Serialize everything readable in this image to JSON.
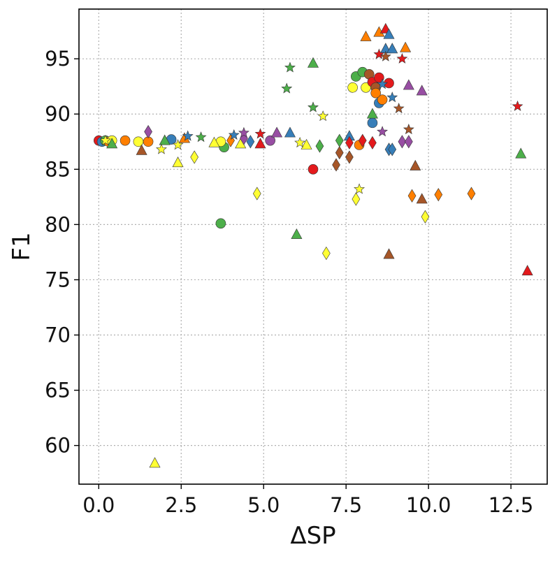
{
  "chart_data": {
    "type": "scatter",
    "xlabel": "ΔSP",
    "ylabel": "F1",
    "xlim": [
      -0.6,
      13.6
    ],
    "ylim": [
      56.5,
      99.5
    ],
    "xticks": [
      "0.0",
      "2.5",
      "5.0",
      "7.5",
      "10.0",
      "12.5"
    ],
    "xtick_values": [
      0,
      2.5,
      5,
      7.5,
      10,
      12.5
    ],
    "yticks": [
      "60",
      "65",
      "70",
      "75",
      "80",
      "85",
      "90",
      "95"
    ],
    "ytick_values": [
      60,
      65,
      70,
      75,
      80,
      85,
      90,
      95
    ],
    "grid": true,
    "legend": "none",
    "colors": {
      "red": "#e41a1c",
      "blue": "#377eb8",
      "green": "#4daf4a",
      "purple": "#984ea3",
      "orange": "#ff7f00",
      "yellow": "#ffff33",
      "brown": "#a65628",
      "edge": "#333333"
    },
    "points": [
      {
        "x": 0.0,
        "y": 87.6,
        "marker": "circle",
        "color": "red"
      },
      {
        "x": 0.1,
        "y": 87.5,
        "marker": "circle",
        "color": "blue"
      },
      {
        "x": 0.2,
        "y": 87.6,
        "marker": "circle",
        "color": "green"
      },
      {
        "x": 0.3,
        "y": 87.5,
        "marker": "circle",
        "color": "orange"
      },
      {
        "x": 0.4,
        "y": 87.6,
        "marker": "circle",
        "color": "yellow"
      },
      {
        "x": 0.8,
        "y": 87.6,
        "marker": "circle",
        "color": "orange"
      },
      {
        "x": 1.2,
        "y": 87.5,
        "marker": "circle",
        "color": "yellow"
      },
      {
        "x": 1.5,
        "y": 87.5,
        "marker": "circle",
        "color": "orange"
      },
      {
        "x": 3.7,
        "y": 80.1,
        "marker": "circle",
        "color": "green"
      },
      {
        "x": 3.8,
        "y": 87.0,
        "marker": "circle",
        "color": "green"
      },
      {
        "x": 3.7,
        "y": 87.5,
        "marker": "circle",
        "color": "yellow"
      },
      {
        "x": 5.2,
        "y": 87.6,
        "marker": "circle",
        "color": "purple"
      },
      {
        "x": 2.2,
        "y": 87.7,
        "marker": "circle",
        "color": "blue"
      },
      {
        "x": 6.5,
        "y": 85.0,
        "marker": "circle",
        "color": "red"
      },
      {
        "x": 7.7,
        "y": 92.4,
        "marker": "circle",
        "color": "yellow"
      },
      {
        "x": 7.8,
        "y": 93.4,
        "marker": "circle",
        "color": "green"
      },
      {
        "x": 8.0,
        "y": 93.8,
        "marker": "circle",
        "color": "green"
      },
      {
        "x": 8.1,
        "y": 92.4,
        "marker": "circle",
        "color": "yellow"
      },
      {
        "x": 8.2,
        "y": 93.6,
        "marker": "circle",
        "color": "brown"
      },
      {
        "x": 8.3,
        "y": 92.9,
        "marker": "circle",
        "color": "red"
      },
      {
        "x": 8.4,
        "y": 92.4,
        "marker": "circle",
        "color": "brown"
      },
      {
        "x": 8.5,
        "y": 93.3,
        "marker": "circle",
        "color": "red"
      },
      {
        "x": 8.5,
        "y": 91.0,
        "marker": "circle",
        "color": "blue"
      },
      {
        "x": 8.6,
        "y": 91.3,
        "marker": "circle",
        "color": "orange"
      },
      {
        "x": 8.8,
        "y": 92.8,
        "marker": "circle",
        "color": "red"
      },
      {
        "x": 8.3,
        "y": 89.2,
        "marker": "circle",
        "color": "blue"
      },
      {
        "x": 7.9,
        "y": 87.2,
        "marker": "circle",
        "color": "orange"
      },
      {
        "x": 8.4,
        "y": 91.9,
        "marker": "circle",
        "color": "orange"
      },
      {
        "x": 0.4,
        "y": 87.3,
        "marker": "triangle",
        "color": "green"
      },
      {
        "x": 1.3,
        "y": 86.7,
        "marker": "triangle",
        "color": "brown"
      },
      {
        "x": 1.7,
        "y": 58.4,
        "marker": "triangle",
        "color": "yellow"
      },
      {
        "x": 2.0,
        "y": 87.6,
        "marker": "triangle",
        "color": "green"
      },
      {
        "x": 2.4,
        "y": 85.6,
        "marker": "triangle",
        "color": "yellow"
      },
      {
        "x": 2.6,
        "y": 87.8,
        "marker": "triangle",
        "color": "orange"
      },
      {
        "x": 3.5,
        "y": 87.4,
        "marker": "triangle",
        "color": "yellow"
      },
      {
        "x": 4.3,
        "y": 87.3,
        "marker": "triangle",
        "color": "yellow"
      },
      {
        "x": 4.9,
        "y": 87.3,
        "marker": "triangle",
        "color": "red"
      },
      {
        "x": 5.4,
        "y": 88.3,
        "marker": "triangle",
        "color": "purple"
      },
      {
        "x": 5.8,
        "y": 88.3,
        "marker": "triangle",
        "color": "blue"
      },
      {
        "x": 6.0,
        "y": 79.1,
        "marker": "triangle",
        "color": "green"
      },
      {
        "x": 6.3,
        "y": 87.2,
        "marker": "triangle",
        "color": "yellow"
      },
      {
        "x": 6.5,
        "y": 94.6,
        "marker": "triangle",
        "color": "green"
      },
      {
        "x": 7.6,
        "y": 88.0,
        "marker": "triangle",
        "color": "blue"
      },
      {
        "x": 8.1,
        "y": 97.0,
        "marker": "triangle",
        "color": "orange"
      },
      {
        "x": 8.3,
        "y": 90.0,
        "marker": "triangle",
        "color": "green"
      },
      {
        "x": 8.5,
        "y": 97.4,
        "marker": "triangle",
        "color": "orange"
      },
      {
        "x": 8.7,
        "y": 97.7,
        "marker": "triangle",
        "color": "red"
      },
      {
        "x": 8.7,
        "y": 95.9,
        "marker": "triangle",
        "color": "blue"
      },
      {
        "x": 8.8,
        "y": 97.2,
        "marker": "triangle",
        "color": "blue"
      },
      {
        "x": 8.9,
        "y": 95.9,
        "marker": "triangle",
        "color": "blue"
      },
      {
        "x": 8.8,
        "y": 77.3,
        "marker": "triangle",
        "color": "brown"
      },
      {
        "x": 9.3,
        "y": 96.0,
        "marker": "triangle",
        "color": "orange"
      },
      {
        "x": 9.4,
        "y": 92.6,
        "marker": "triangle",
        "color": "purple"
      },
      {
        "x": 9.6,
        "y": 85.3,
        "marker": "triangle",
        "color": "brown"
      },
      {
        "x": 9.8,
        "y": 92.1,
        "marker": "triangle",
        "color": "purple"
      },
      {
        "x": 9.8,
        "y": 82.3,
        "marker": "triangle",
        "color": "brown"
      },
      {
        "x": 12.8,
        "y": 86.4,
        "marker": "triangle",
        "color": "green"
      },
      {
        "x": 13.0,
        "y": 75.8,
        "marker": "triangle",
        "color": "red"
      },
      {
        "x": 1.5,
        "y": 88.4,
        "marker": "diamond",
        "color": "purple"
      },
      {
        "x": 2.9,
        "y": 86.1,
        "marker": "diamond",
        "color": "yellow"
      },
      {
        "x": 4.0,
        "y": 87.6,
        "marker": "diamond",
        "color": "orange"
      },
      {
        "x": 4.4,
        "y": 87.8,
        "marker": "diamond",
        "color": "purple"
      },
      {
        "x": 4.8,
        "y": 82.8,
        "marker": "diamond",
        "color": "yellow"
      },
      {
        "x": 6.7,
        "y": 87.1,
        "marker": "diamond",
        "color": "green"
      },
      {
        "x": 6.9,
        "y": 77.4,
        "marker": "diamond",
        "color": "yellow"
      },
      {
        "x": 7.2,
        "y": 85.4,
        "marker": "diamond",
        "color": "brown"
      },
      {
        "x": 7.3,
        "y": 86.5,
        "marker": "diamond",
        "color": "brown"
      },
      {
        "x": 7.3,
        "y": 87.6,
        "marker": "diamond",
        "color": "green"
      },
      {
        "x": 7.6,
        "y": 86.1,
        "marker": "diamond",
        "color": "brown"
      },
      {
        "x": 7.6,
        "y": 87.4,
        "marker": "diamond",
        "color": "red"
      },
      {
        "x": 7.8,
        "y": 82.3,
        "marker": "diamond",
        "color": "yellow"
      },
      {
        "x": 8.0,
        "y": 87.6,
        "marker": "diamond",
        "color": "red"
      },
      {
        "x": 8.3,
        "y": 87.4,
        "marker": "diamond",
        "color": "red"
      },
      {
        "x": 8.8,
        "y": 86.8,
        "marker": "diamond",
        "color": "blue"
      },
      {
        "x": 8.9,
        "y": 86.8,
        "marker": "diamond",
        "color": "blue"
      },
      {
        "x": 9.2,
        "y": 87.5,
        "marker": "diamond",
        "color": "purple"
      },
      {
        "x": 9.4,
        "y": 87.5,
        "marker": "diamond",
        "color": "purple"
      },
      {
        "x": 9.5,
        "y": 82.6,
        "marker": "diamond",
        "color": "orange"
      },
      {
        "x": 9.9,
        "y": 80.7,
        "marker": "diamond",
        "color": "yellow"
      },
      {
        "x": 10.3,
        "y": 82.7,
        "marker": "diamond",
        "color": "orange"
      },
      {
        "x": 11.3,
        "y": 82.8,
        "marker": "diamond",
        "color": "orange"
      },
      {
        "x": 4.6,
        "y": 87.5,
        "marker": "diamond",
        "color": "blue"
      },
      {
        "x": 0.2,
        "y": 87.6,
        "marker": "star",
        "color": "yellow"
      },
      {
        "x": 1.9,
        "y": 86.8,
        "marker": "star",
        "color": "yellow"
      },
      {
        "x": 2.4,
        "y": 87.2,
        "marker": "star",
        "color": "yellow"
      },
      {
        "x": 3.1,
        "y": 87.9,
        "marker": "star",
        "color": "green"
      },
      {
        "x": 4.1,
        "y": 88.1,
        "marker": "star",
        "color": "blue"
      },
      {
        "x": 4.4,
        "y": 88.3,
        "marker": "star",
        "color": "purple"
      },
      {
        "x": 4.9,
        "y": 88.2,
        "marker": "star",
        "color": "red"
      },
      {
        "x": 5.7,
        "y": 92.3,
        "marker": "star",
        "color": "green"
      },
      {
        "x": 5.8,
        "y": 94.2,
        "marker": "star",
        "color": "green"
      },
      {
        "x": 6.1,
        "y": 87.4,
        "marker": "star",
        "color": "yellow"
      },
      {
        "x": 6.5,
        "y": 90.6,
        "marker": "star",
        "color": "green"
      },
      {
        "x": 6.8,
        "y": 89.8,
        "marker": "star",
        "color": "yellow"
      },
      {
        "x": 7.9,
        "y": 83.2,
        "marker": "star",
        "color": "yellow"
      },
      {
        "x": 8.5,
        "y": 95.4,
        "marker": "star",
        "color": "red"
      },
      {
        "x": 8.7,
        "y": 95.2,
        "marker": "star",
        "color": "brown"
      },
      {
        "x": 8.6,
        "y": 88.4,
        "marker": "star",
        "color": "purple"
      },
      {
        "x": 8.6,
        "y": 92.7,
        "marker": "star",
        "color": "blue"
      },
      {
        "x": 8.9,
        "y": 91.5,
        "marker": "star",
        "color": "blue"
      },
      {
        "x": 9.1,
        "y": 90.5,
        "marker": "star",
        "color": "brown"
      },
      {
        "x": 9.2,
        "y": 95.0,
        "marker": "star",
        "color": "red"
      },
      {
        "x": 9.4,
        "y": 88.6,
        "marker": "star",
        "color": "brown"
      },
      {
        "x": 12.7,
        "y": 90.7,
        "marker": "star",
        "color": "red"
      },
      {
        "x": 2.7,
        "y": 88.0,
        "marker": "star",
        "color": "blue"
      }
    ]
  }
}
